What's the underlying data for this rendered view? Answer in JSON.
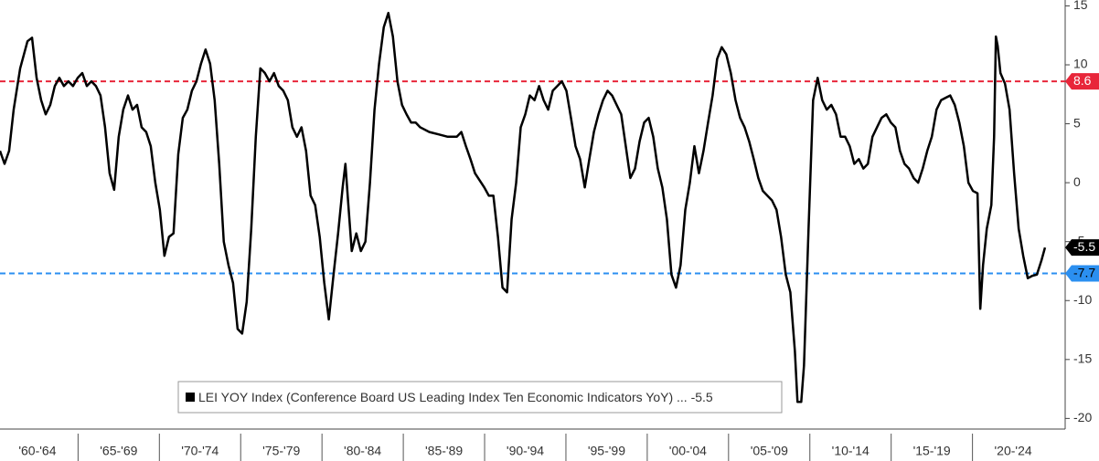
{
  "chart_data": {
    "type": "line",
    "xlim": [
      1960.2,
      2025.7
    ],
    "xticks": [
      {
        "value": 1962.5,
        "label": "'60-'64"
      },
      {
        "value": 1967.5,
        "label": "'65-'69"
      },
      {
        "value": 1972.5,
        "label": "'70-'74"
      },
      {
        "value": 1977.5,
        "label": "'75-'79"
      },
      {
        "value": 1982.5,
        "label": "'80-'84"
      },
      {
        "value": 1987.5,
        "label": "'85-'89"
      },
      {
        "value": 1992.5,
        "label": "'90-'94"
      },
      {
        "value": 1997.5,
        "label": "'95-'99"
      },
      {
        "value": 2002.5,
        "label": "'00-'04"
      },
      {
        "value": 2007.5,
        "label": "'05-'09"
      },
      {
        "value": 2012.5,
        "label": "'10-'14"
      },
      {
        "value": 2017.5,
        "label": "'15-'19"
      },
      {
        "value": 2022.5,
        "label": "'20-'24"
      }
    ],
    "ylim": [
      -20.9,
      15.5
    ],
    "yticks": [
      15,
      10,
      5,
      0,
      -5,
      -10,
      -15,
      -20
    ],
    "reference_lines": [
      {
        "value": 8.6,
        "color": "#e8263a"
      },
      {
        "value": -7.7,
        "color": "#2b8ff0"
      }
    ],
    "x": [
      1960.2,
      1960.48,
      1960.76,
      1961.04,
      1961.44,
      1961.89,
      1962.17,
      1962.45,
      1962.73,
      1963.01,
      1963.29,
      1963.57,
      1963.85,
      1964.13,
      1964.41,
      1964.69,
      1964.98,
      1965.26,
      1965.54,
      1965.82,
      1966.1,
      1966.38,
      1966.66,
      1966.94,
      1967.22,
      1967.5,
      1967.78,
      1968.07,
      1968.35,
      1968.63,
      1968.91,
      1969.19,
      1969.47,
      1969.75,
      1970.03,
      1970.31,
      1970.59,
      1970.87,
      1971.16,
      1971.44,
      1971.72,
      1972.0,
      1972.28,
      1972.56,
      1972.84,
      1973.12,
      1973.4,
      1973.68,
      1973.96,
      1974.25,
      1974.53,
      1974.81,
      1975.09,
      1975.37,
      1975.65,
      1975.93,
      1976.21,
      1976.49,
      1976.77,
      1977.05,
      1977.34,
      1977.62,
      1977.9,
      1978.18,
      1978.46,
      1978.74,
      1979.02,
      1979.3,
      1979.58,
      1979.86,
      1980.14,
      1980.42,
      1980.71,
      1980.99,
      1981.27,
      1981.44,
      1981.6,
      1981.83,
      1982.11,
      1982.39,
      1982.67,
      1982.95,
      1983.23,
      1983.51,
      1983.8,
      1984.08,
      1984.36,
      1984.64,
      1984.92,
      1985.2,
      1985.48,
      1985.76,
      1986.04,
      1986.6,
      1987.17,
      1987.73,
      1988.29,
      1988.57,
      1988.85,
      1989.13,
      1989.41,
      1989.98,
      1990.26,
      1990.54,
      1990.82,
      1991.1,
      1991.38,
      1991.66,
      1991.94,
      1992.22,
      1992.5,
      1992.78,
      1993.07,
      1993.35,
      1993.63,
      1993.91,
      1994.19,
      1994.47,
      1994.75,
      1995.03,
      1995.31,
      1995.59,
      1995.87,
      1996.16,
      1996.44,
      1996.72,
      1997.0,
      1997.28,
      1997.56,
      1997.84,
      1998.12,
      1998.4,
      1998.68,
      1998.96,
      1999.25,
      1999.53,
      1999.81,
      2000.09,
      2000.37,
      2000.65,
      2000.93,
      2001.21,
      2001.49,
      2001.77,
      2002.05,
      2002.34,
      2002.62,
      2002.9,
      2003.18,
      2003.46,
      2003.74,
      2004.02,
      2004.3,
      2004.58,
      2004.86,
      2005.14,
      2005.43,
      2005.71,
      2005.99,
      2006.27,
      2006.55,
      2006.83,
      2007.11,
      2007.39,
      2007.67,
      2007.95,
      2008.23,
      2008.52,
      2008.8,
      2009.08,
      2009.24,
      2009.47,
      2009.64,
      2009.92,
      2010.2,
      2010.48,
      2010.76,
      2011.04,
      2011.32,
      2011.61,
      2011.89,
      2012.17,
      2012.45,
      2012.73,
      2013.01,
      2013.29,
      2013.57,
      2013.85,
      2014.13,
      2014.41,
      2014.7,
      2014.98,
      2015.26,
      2015.54,
      2015.82,
      2016.1,
      2016.38,
      2016.66,
      2016.94,
      2017.22,
      2017.5,
      2017.79,
      2018.07,
      2018.35,
      2018.63,
      2018.91,
      2019.19,
      2019.47,
      2019.75,
      2020.03,
      2020.31,
      2020.48,
      2020.65,
      2020.88,
      2021.16,
      2021.33,
      2021.44,
      2021.55,
      2021.72,
      2022.0,
      2022.28,
      2022.56,
      2022.84,
      2023.12,
      2023.4,
      2023.68,
      2023.96,
      2024.24,
      2024.46
    ],
    "series": [
      {
        "name": "LEI YOY Index (Conference Board US Leading Index Ten Economic Indicators YoY) ...",
        "color": "#000000",
        "values": [
          2.7,
          1.6,
          2.7,
          6.2,
          9.7,
          12.0,
          12.3,
          8.9,
          7.0,
          5.8,
          6.6,
          8.2,
          8.9,
          8.2,
          8.6,
          8.2,
          8.9,
          9.3,
          8.2,
          8.6,
          8.2,
          7.4,
          4.7,
          0.8,
          -0.6,
          3.9,
          6.2,
          7.4,
          6.2,
          6.6,
          4.7,
          4.3,
          3.1,
          0.0,
          -2.3,
          -6.2,
          -4.6,
          -4.3,
          2.4,
          5.5,
          6.2,
          7.8,
          8.6,
          10.1,
          11.3,
          10.1,
          7.0,
          1.6,
          -5.0,
          -7.0,
          -8.5,
          -12.4,
          -12.8,
          -10.1,
          -3.9,
          3.9,
          9.7,
          9.3,
          8.6,
          9.3,
          8.2,
          7.8,
          7.0,
          4.7,
          3.9,
          4.7,
          2.7,
          -1.1,
          -1.9,
          -4.6,
          -8.5,
          -11.6,
          -7.8,
          -4.3,
          -0.4,
          1.6,
          -1.5,
          -5.8,
          -4.3,
          -5.8,
          -5.0,
          0.0,
          6.2,
          10.1,
          13.2,
          14.4,
          12.4,
          8.6,
          6.6,
          5.8,
          5.1,
          5.1,
          4.7,
          4.3,
          4.1,
          3.9,
          3.9,
          4.3,
          3.1,
          2.0,
          0.8,
          -0.4,
          -1.1,
          -1.1,
          -4.6,
          -8.9,
          -9.3,
          -3.1,
          0.0,
          4.7,
          5.8,
          7.4,
          7.0,
          8.2,
          7.0,
          6.2,
          7.8,
          8.2,
          8.6,
          7.8,
          5.5,
          3.1,
          2.0,
          -0.4,
          2.0,
          4.3,
          5.8,
          7.0,
          7.8,
          7.4,
          6.6,
          5.8,
          3.1,
          0.4,
          1.2,
          3.5,
          5.1,
          5.5,
          3.9,
          1.2,
          -0.4,
          -3.1,
          -7.8,
          -8.9,
          -7.0,
          -2.3,
          0.0,
          3.1,
          0.8,
          2.7,
          5.1,
          7.4,
          10.5,
          11.5,
          10.9,
          9.3,
          7.0,
          5.5,
          4.7,
          3.5,
          2.0,
          0.4,
          -0.7,
          -1.1,
          -1.5,
          -2.3,
          -4.6,
          -7.8,
          -9.3,
          -14.3,
          -18.6,
          -18.6,
          -15.5,
          -3.9,
          7.0,
          8.9,
          7.0,
          6.2,
          6.6,
          5.8,
          3.9,
          3.9,
          3.1,
          1.6,
          2.0,
          1.2,
          1.6,
          3.9,
          4.7,
          5.5,
          5.8,
          5.1,
          4.7,
          2.7,
          1.6,
          1.2,
          0.4,
          0.0,
          1.2,
          2.7,
          3.9,
          6.2,
          7.0,
          7.2,
          7.4,
          6.6,
          5.1,
          3.1,
          0.0,
          -0.7,
          -0.9,
          -10.7,
          -7.0,
          -3.9,
          -1.9,
          3.9,
          12.4,
          11.6,
          9.3,
          8.4,
          6.2,
          0.8,
          -3.9,
          -6.2,
          -8.1,
          -7.9,
          -7.8,
          -6.6,
          -5.5
        ]
      }
    ]
  }
}
